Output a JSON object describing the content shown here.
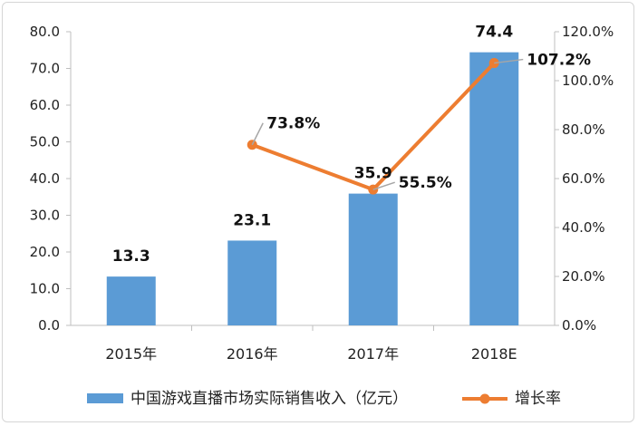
{
  "chart_data": {
    "type": "bar",
    "categories": [
      "2015年",
      "2016年",
      "2017年",
      "2018E"
    ],
    "series": [
      {
        "name": "中国游戏直播市场实际销售收入（亿元）",
        "type": "bar",
        "axis": "left",
        "values": [
          13.3,
          23.1,
          35.9,
          74.4
        ],
        "labels": [
          "13.3",
          "23.1",
          "35.9",
          "74.4"
        ]
      },
      {
        "name": "增长率",
        "type": "line",
        "axis": "right",
        "values": [
          null,
          73.8,
          55.5,
          107.2
        ],
        "labels": [
          "",
          "73.8%",
          "55.5%",
          "107.2%"
        ]
      }
    ],
    "left_axis": {
      "ylim": [
        0,
        80
      ],
      "ticks": [
        "0.0",
        "10.0",
        "20.0",
        "30.0",
        "40.0",
        "50.0",
        "60.0",
        "70.0",
        "80.0"
      ]
    },
    "right_axis": {
      "ylim": [
        0,
        120
      ],
      "ticks": [
        "0.0%",
        "20.0%",
        "40.0%",
        "60.0%",
        "80.0%",
        "100.0%",
        "120.0%"
      ]
    },
    "grid": false,
    "legend": "bottom",
    "colors": {
      "bar": "#5b9bd5",
      "line": "#ed7d31",
      "leader": "#a6a6a6",
      "axis": "#bfbfbf"
    }
  }
}
